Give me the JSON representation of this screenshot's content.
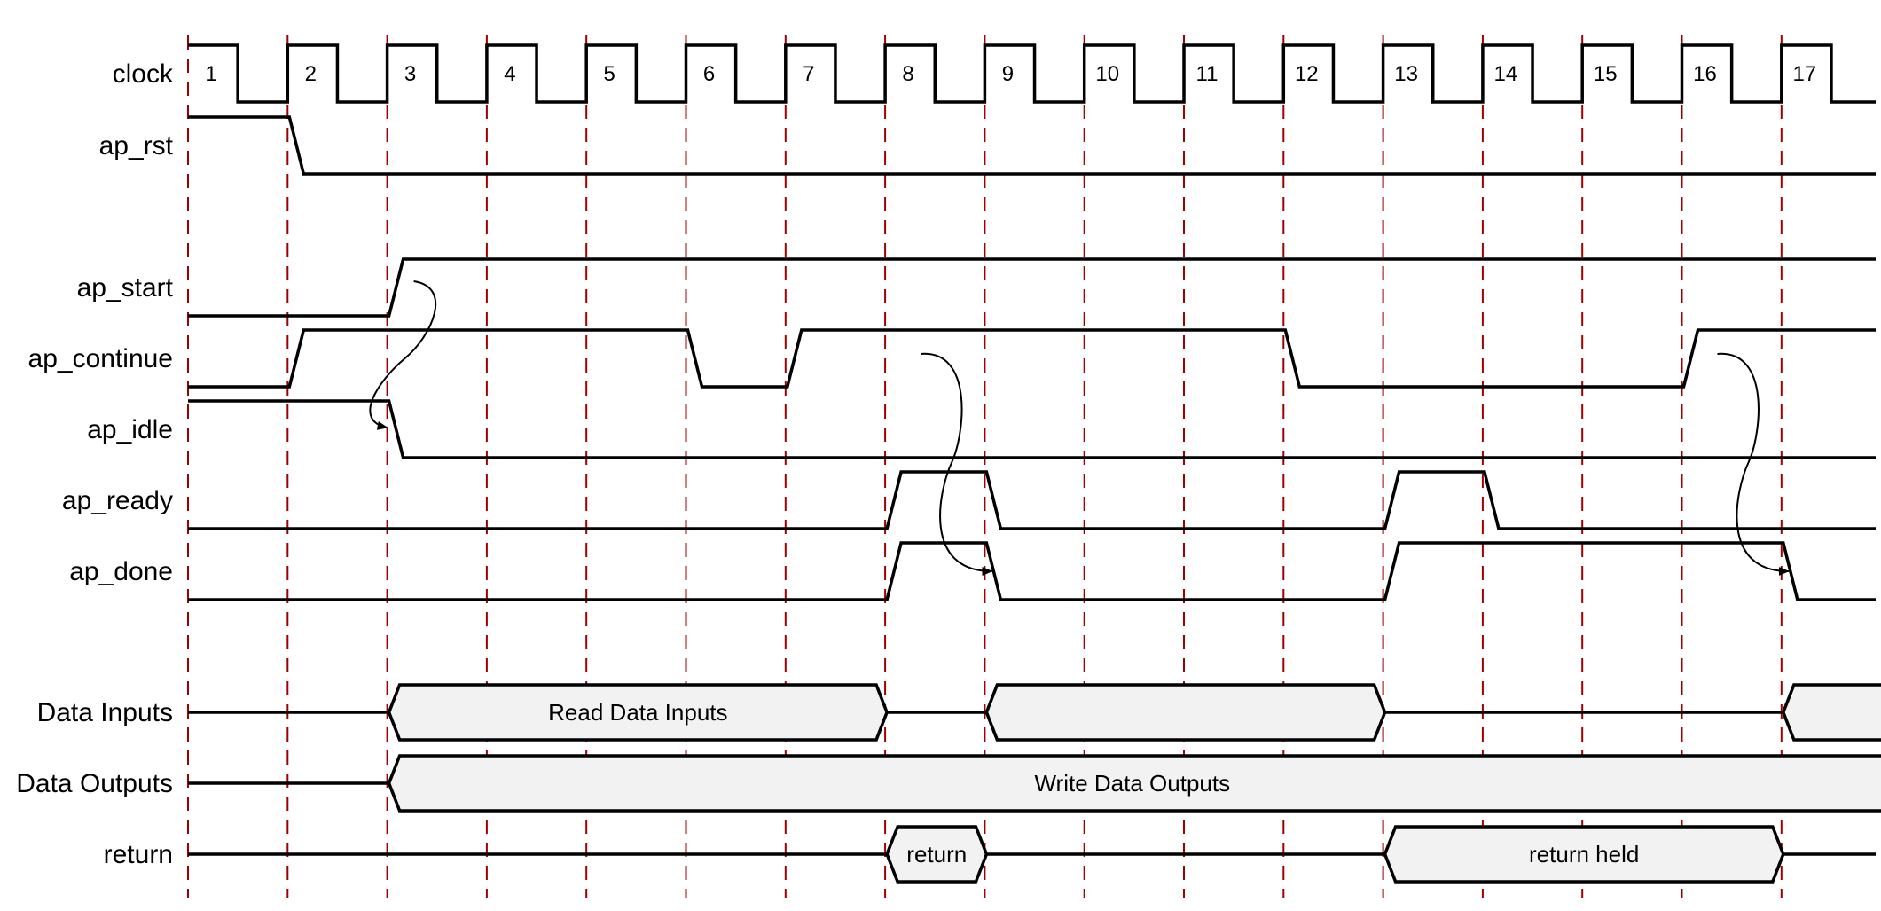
{
  "signals": [
    {
      "key": "clock",
      "label": "clock"
    },
    {
      "key": "ap_rst",
      "label": "ap_rst"
    },
    {
      "key": "ap_start",
      "label": "ap_start"
    },
    {
      "key": "ap_continue",
      "label": "ap_continue"
    },
    {
      "key": "ap_idle",
      "label": "ap_idle"
    },
    {
      "key": "ap_ready",
      "label": "ap_ready"
    },
    {
      "key": "ap_done",
      "label": "ap_done"
    },
    {
      "key": "data_inputs",
      "label": "Data Inputs"
    },
    {
      "key": "data_outputs",
      "label": "Data Outputs"
    },
    {
      "key": "return",
      "label": "return"
    }
  ],
  "cycles": [
    "1",
    "2",
    "3",
    "4",
    "5",
    "6",
    "7",
    "8",
    "9",
    "10",
    "11",
    "12",
    "13",
    "14",
    "15",
    "16",
    "17"
  ],
  "colors": {
    "grid": "#a00000",
    "bus_fill": "#f2f2f2",
    "line": "#000000"
  },
  "waves": {
    "ap_rst": {
      "initial": 1,
      "transitions": [
        2
      ]
    },
    "ap_start": {
      "initial": 0,
      "transitions": [
        3
      ]
    },
    "ap_continue": {
      "initial": 0,
      "transitions": [
        2,
        6,
        7,
        12,
        16
      ]
    },
    "ap_idle": {
      "initial": 1,
      "transitions": [
        3
      ]
    },
    "ap_ready": {
      "initial": 0,
      "transitions": [
        8,
        9,
        13,
        14
      ]
    },
    "ap_done": {
      "initial": 0,
      "transitions": [
        8,
        9,
        13,
        17
      ]
    }
  },
  "buses": {
    "data_inputs": [
      {
        "start": 3,
        "end": 8,
        "label": "Read Data Inputs"
      },
      {
        "start": 9,
        "end": 13,
        "label": ""
      },
      {
        "start": 17,
        "end": null,
        "label": ""
      }
    ],
    "data_outputs": [
      {
        "start": 3,
        "end": null,
        "label": "Write Data Outputs"
      }
    ],
    "return": [
      {
        "start": 8,
        "end": 9,
        "label": "return"
      },
      {
        "start": 13,
        "end": 17,
        "label": "return held"
      }
    ]
  },
  "causality_arrows": [
    {
      "from_signal": "ap_start",
      "from_cycle": 3,
      "to_signal": "ap_idle",
      "to_cycle": 3
    },
    {
      "from_signal": "ap_continue",
      "from_cycle": 8,
      "to_signal": "ap_done",
      "to_cycle": 9
    },
    {
      "from_signal": "ap_continue",
      "from_cycle": 16,
      "to_signal": "ap_done",
      "to_cycle": 17
    }
  ]
}
